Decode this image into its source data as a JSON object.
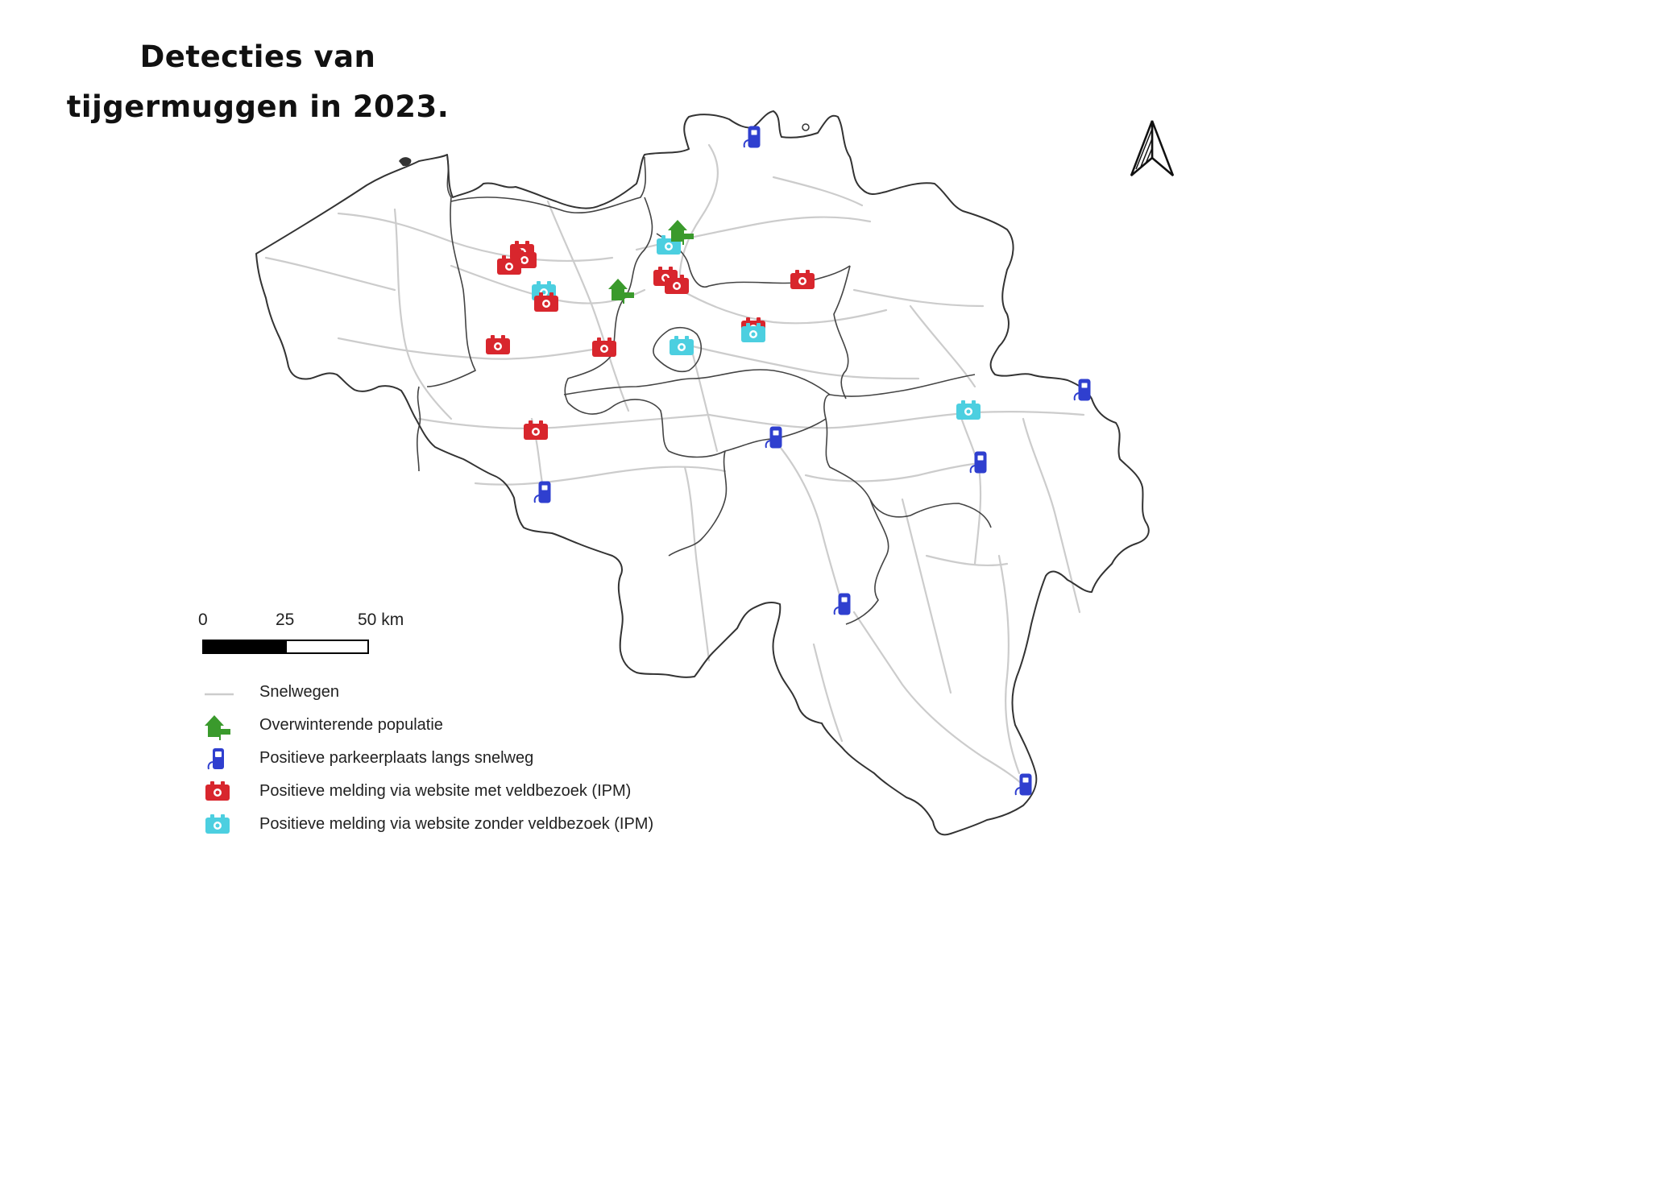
{
  "title": {
    "line1": "Detecties van",
    "line2": "tijgermuggen in 2023."
  },
  "scale_bar": {
    "labels": [
      "0",
      "25",
      "50 km"
    ]
  },
  "legend": [
    {
      "symbol": "highway-line",
      "label": "Snelwegen"
    },
    {
      "symbol": "house-flag-icon",
      "label": "Overwinterende populatie"
    },
    {
      "symbol": "fuel-pump-icon",
      "label": "Positieve parkeerplaats langs snelweg"
    },
    {
      "symbol": "camera-red-icon",
      "label": "Positieve melding via website met veldbezoek (IPM)"
    },
    {
      "symbol": "camera-cyan-icon",
      "label": "Positieve melding via website zonder veldbezoek (IPM)"
    }
  ],
  "colors": {
    "highway": "#cccccc",
    "border": "#333333",
    "overwintering": "#3a9a2c",
    "parking": "#2f3fcf",
    "with_visit": "#d8262d",
    "without_visit": "#4ccfe0"
  },
  "north_arrow": "north-arrow-icon"
}
